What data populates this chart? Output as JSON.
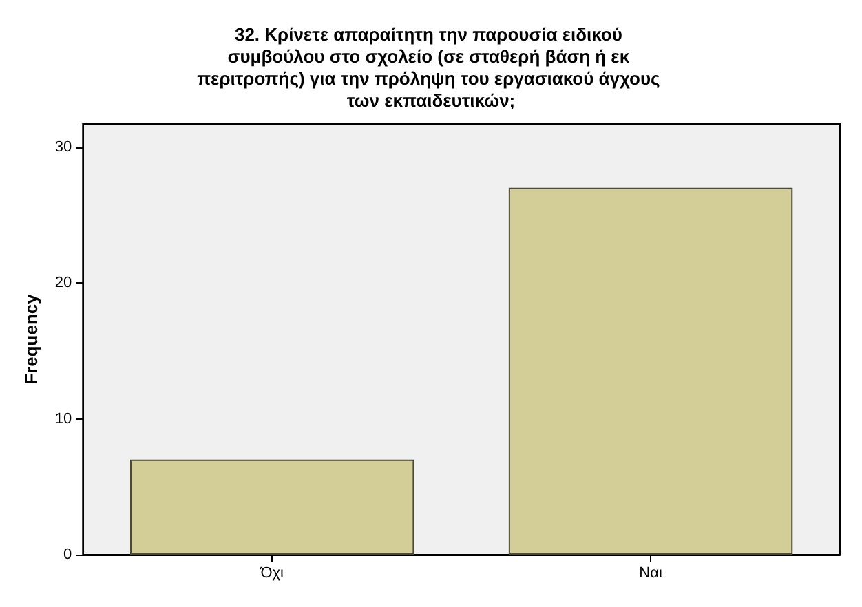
{
  "chart_data": {
    "type": "bar",
    "title": "32. Κρίνετε απαραίτητη την παρουσία ειδικού συμβούλου στο σχολείο (σε σταθερή βάση ή εκ περιτροπής) για την πρόληψη του εργασιακού άγχους των εκπαιδευτικών;",
    "ylabel": "Frequency",
    "categories": [
      "Όχι",
      "Ναι"
    ],
    "values": [
      7,
      27
    ],
    "color": "#d3ce97",
    "ylim": [
      0,
      31.7
    ],
    "yticks": [
      0,
      10,
      20,
      30
    ],
    "grid": false
  }
}
